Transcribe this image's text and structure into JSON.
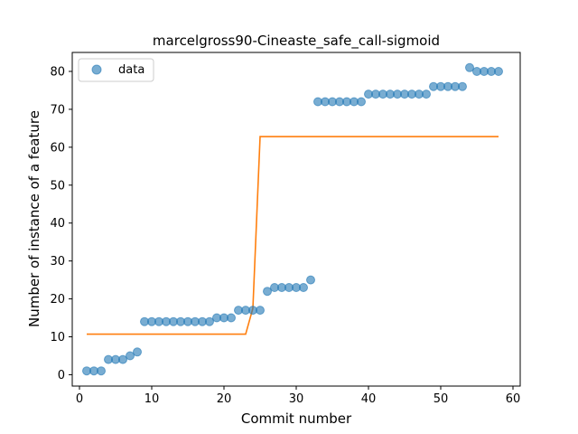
{
  "chart_data": {
    "type": "scatter",
    "title": "marcelgross90-Cineaste_safe_call-sigmoid",
    "xlabel": "Commit number",
    "ylabel": "Number of instance of a feature",
    "xlim": [
      -1,
      61
    ],
    "ylim": [
      -3,
      85
    ],
    "xticks": [
      0,
      10,
      20,
      30,
      40,
      50,
      60
    ],
    "yticks": [
      0,
      10,
      20,
      30,
      40,
      50,
      60,
      70,
      80
    ],
    "legend": {
      "position": "upper-left",
      "entries": [
        "data"
      ]
    },
    "grid": false,
    "colors": {
      "data": "#1f77b4",
      "fit": "#ff7f0e"
    },
    "series": [
      {
        "name": "data",
        "kind": "scatter",
        "x": [
          1,
          2,
          3,
          4,
          5,
          6,
          7,
          8,
          9,
          10,
          11,
          12,
          13,
          14,
          15,
          16,
          17,
          18,
          19,
          20,
          21,
          22,
          23,
          24,
          25,
          26,
          27,
          28,
          29,
          30,
          31,
          32,
          33,
          34,
          35,
          36,
          37,
          38,
          39,
          40,
          41,
          42,
          43,
          44,
          45,
          46,
          47,
          48,
          49,
          50,
          51,
          52,
          53,
          54,
          55,
          56,
          57,
          58
        ],
        "y": [
          1,
          1,
          1,
          4,
          4,
          4,
          5,
          6,
          14,
          14,
          14,
          14,
          14,
          14,
          14,
          14,
          14,
          14,
          15,
          15,
          15,
          17,
          17,
          17,
          17,
          22,
          23,
          23,
          23,
          23,
          23,
          25,
          72,
          72,
          72,
          72,
          72,
          72,
          72,
          74,
          74,
          74,
          74,
          74,
          74,
          74,
          74,
          74,
          76,
          76,
          76,
          76,
          76,
          81,
          80,
          80,
          80,
          80
        ]
      },
      {
        "kind": "line",
        "x": [
          1,
          23,
          24,
          25,
          58
        ],
        "y": [
          10.7,
          10.7,
          17.5,
          62.8,
          62.8
        ]
      }
    ]
  }
}
